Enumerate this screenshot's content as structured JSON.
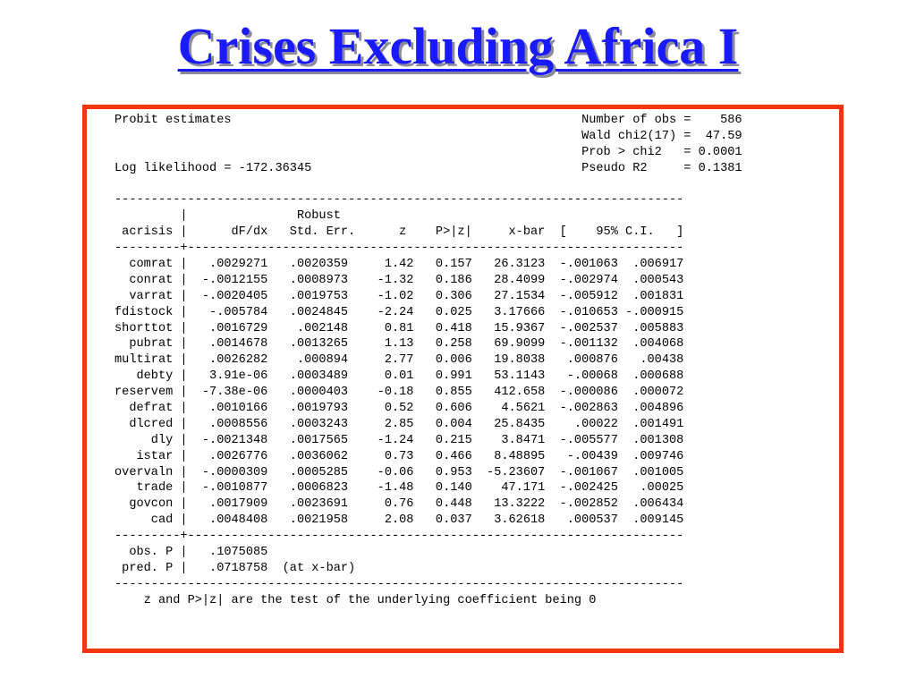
{
  "title": "Crises Excluding Africa I",
  "header_lines": [
    "Probit estimates                                                Number of obs =    586",
    "                                                                Wald chi2(17) =  47.59",
    "                                                                Prob > chi2   = 0.0001",
    "Log likelihood = -172.36345                                     Pseudo R2     = 0.1381",
    ""
  ],
  "rule_line": "------------------------------------------------------------------------------",
  "column_header_lines": [
    "         |               Robust",
    " acrisis |      dF/dx   Std. Err.      z    P>|z|     x-bar  [    95% C.I.   ]"
  ],
  "separator_line": "---------+--------------------------------------------------------------------",
  "rows": [
    "  comrat |   .0029271   .0020359     1.42   0.157   26.3123  -.001063  .006917",
    "  conrat |  -.0012155   .0008973    -1.32   0.186   28.4099  -.002974  .000543",
    "  varrat |  -.0020405   .0019753    -1.02   0.306   27.1534  -.005912  .001831",
    "fdistock |   -.005784   .0024845    -2.24   0.025   3.17666  -.010653 -.000915",
    "shorttot |   .0016729    .002148     0.81   0.418   15.9367  -.002537  .005883",
    "  pubrat |   .0014678   .0013265     1.13   0.258   69.9099  -.001132  .004068",
    "multirat |   .0026282    .000894     2.77   0.006   19.8038   .000876   .00438",
    "   debty |   3.91e-06   .0003489     0.01   0.991   53.1143   -.00068  .000688",
    "reservem |  -7.38e-06   .0000403    -0.18   0.855   412.658  -.000086  .000072",
    "  defrat |   .0010166   .0019793     0.52   0.606    4.5621  -.002863  .004896",
    "  dlcred |   .0008556   .0003243     2.85   0.004   25.8435    .00022  .001491",
    "     dly |  -.0021348   .0017565    -1.24   0.215    3.8471  -.005577  .001308",
    "   istar |   .0026776   .0036062     0.73   0.466   8.48895   -.00439  .009746",
    "overvaln |  -.0000309   .0005285    -0.06   0.953  -5.23607  -.001067  .001005",
    "   trade |  -.0010877   .0006823    -1.48   0.140    47.171  -.002425   .00025",
    "  govcon |   .0017909   .0023691     0.76   0.448   13.3222  -.002852  .006434",
    "     cad |   .0048408   .0021958     2.08   0.037   3.62618   .000537  .009145"
  ],
  "footer_lines": [
    "  obs. P |   .1075085",
    " pred. P |   .0718758  (at x-bar)"
  ],
  "note_line": "    z and P>|z| are the test of the underlying coefficient being 0",
  "colors": {
    "title": "#1a1aff",
    "frame_border": "#f2360e",
    "text": "#000000"
  }
}
